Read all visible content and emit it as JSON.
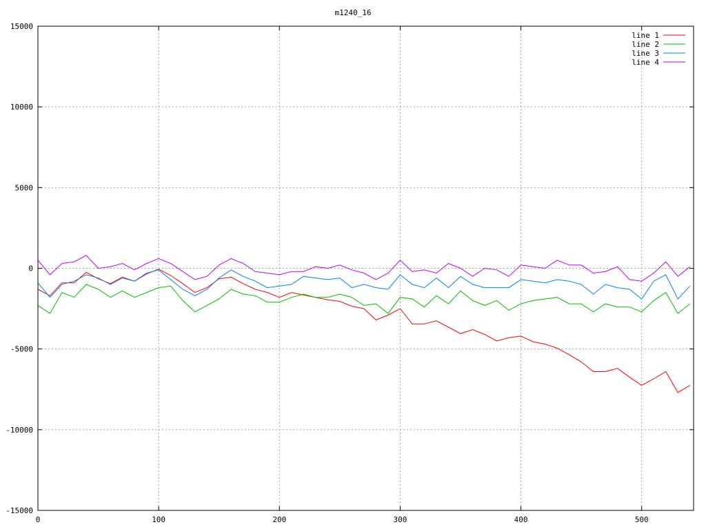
{
  "chart_data": {
    "type": "line",
    "title": "m1240_16",
    "xlabel": "",
    "ylabel": "",
    "xlim": [
      0,
      543
    ],
    "ylim": [
      -15000,
      15000
    ],
    "xticks": [
      0,
      100,
      200,
      300,
      400,
      500
    ],
    "yticks": [
      -15000,
      -10000,
      -5000,
      0,
      5000,
      10000,
      15000
    ],
    "grid": true,
    "legend": "top-right",
    "x": [
      0,
      10,
      20,
      30,
      40,
      50,
      60,
      70,
      80,
      90,
      100,
      110,
      120,
      130,
      140,
      150,
      160,
      170,
      180,
      190,
      200,
      210,
      220,
      230,
      240,
      250,
      260,
      270,
      280,
      290,
      300,
      310,
      320,
      330,
      340,
      350,
      360,
      370,
      380,
      390,
      400,
      410,
      420,
      430,
      440,
      450,
      460,
      470,
      480,
      490,
      500,
      510,
      520,
      530,
      540
    ],
    "series": [
      {
        "name": "line 1",
        "color": "#ff0000",
        "values": [
          -1300,
          -1700,
          -900,
          -900,
          -250,
          -650,
          -950,
          -550,
          -800,
          -350,
          -50,
          -450,
          -950,
          -1500,
          -1200,
          -650,
          -550,
          -950,
          -1300,
          -1500,
          -1800,
          -1500,
          -1650,
          -1800,
          -1950,
          -2050,
          -2350,
          -2500,
          -3200,
          -2900,
          -2500,
          -3450,
          -3450,
          -3250,
          -3650,
          -4050,
          -3800,
          -4100,
          -4500,
          -4300,
          -4200,
          -4550,
          -4700,
          -4950,
          -5350,
          -5800,
          -6400,
          -6400,
          -6200,
          -6750,
          -7250,
          -6850,
          -6400,
          -7700,
          -7250
        ]
      },
      {
        "name": "line 2",
        "color": "#00c000",
        "values": [
          -2300,
          -2800,
          -1500,
          -1800,
          -1000,
          -1300,
          -1800,
          -1400,
          -1800,
          -1500,
          -1200,
          -1100,
          -2000,
          -2700,
          -2300,
          -1900,
          -1300,
          -1600,
          -1700,
          -2100,
          -2100,
          -1800,
          -1600,
          -1800,
          -1800,
          -1600,
          -1800,
          -2300,
          -2200,
          -2800,
          -1800,
          -1900,
          -2400,
          -1700,
          -2200,
          -1400,
          -2000,
          -2300,
          -2000,
          -2600,
          -2200,
          -2000,
          -1900,
          -1800,
          -2200,
          -2200,
          -2700,
          -2200,
          -2400,
          -2400,
          -2700,
          -2000,
          -1500,
          -2800,
          -2200
        ]
      },
      {
        "name": "line 3",
        "color": "#0080ff",
        "values": [
          -900,
          -1800,
          -1000,
          -800,
          -400,
          -600,
          -1000,
          -600,
          -800,
          -300,
          -100,
          -700,
          -1300,
          -1700,
          -1300,
          -600,
          -100,
          -500,
          -800,
          -1200,
          -1100,
          -1000,
          -500,
          -600,
          -700,
          -600,
          -1200,
          -1000,
          -1200,
          -1300,
          -400,
          -1000,
          -1200,
          -600,
          -1200,
          -500,
          -1000,
          -1200,
          -1200,
          -1200,
          -700,
          -800,
          -900,
          -700,
          -800,
          -1000,
          -1600,
          -1000,
          -1200,
          -1300,
          -1900,
          -800,
          -400,
          -1900,
          -1100
        ]
      },
      {
        "name": "line 4",
        "color": "#c000ff",
        "values": [
          500,
          -400,
          300,
          400,
          800,
          0,
          100,
          300,
          -100,
          300,
          600,
          300,
          -200,
          -700,
          -500,
          200,
          600,
          300,
          -200,
          -300,
          -400,
          -200,
          -200,
          100,
          0,
          200,
          -100,
          -300,
          -700,
          -300,
          500,
          -200,
          -100,
          -300,
          300,
          0,
          -500,
          0,
          -100,
          -500,
          200,
          100,
          0,
          500,
          200,
          200,
          -300,
          -200,
          100,
          -700,
          -800,
          -300,
          400,
          -500,
          100
        ]
      }
    ]
  }
}
